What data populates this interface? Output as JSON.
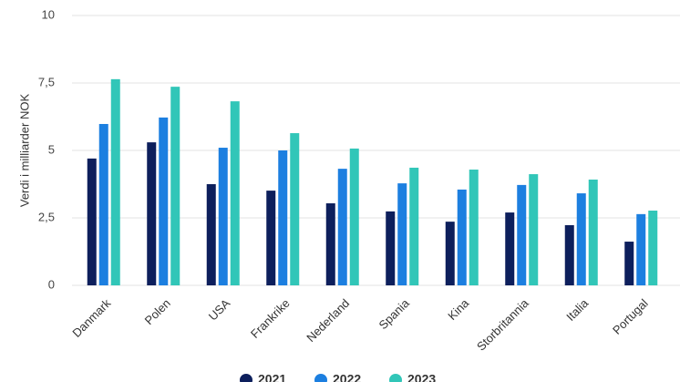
{
  "chart_data": {
    "type": "bar",
    "y_label": "Verdi i milliarder NOK",
    "categories": [
      "Danmark",
      "Polen",
      "USA",
      "Frankrike",
      "Nederland",
      "Spania",
      "Kina",
      "Storbritannia",
      "Italia",
      "Portugal"
    ],
    "series": [
      {
        "name": "2021",
        "color": "#0d1f5c",
        "values": [
          4.7,
          5.3,
          3.75,
          3.51,
          3.04,
          2.74,
          2.36,
          2.7,
          2.23,
          1.62
        ]
      },
      {
        "name": "2022",
        "color": "#1c7fe0",
        "values": [
          5.98,
          6.22,
          5.1,
          5.0,
          4.32,
          3.78,
          3.55,
          3.72,
          3.41,
          2.64
        ]
      },
      {
        "name": "2023",
        "color": "#31c6b8",
        "values": [
          7.64,
          7.36,
          6.82,
          5.64,
          5.07,
          4.36,
          4.29,
          4.12,
          3.92,
          2.77
        ]
      }
    ],
    "ylim": [
      0,
      10
    ],
    "yticks": [
      0,
      {
        "value": 2.5,
        "label": "2,5"
      },
      5,
      {
        "value": 7.5,
        "label": "7,5"
      },
      10
    ],
    "grid": true
  }
}
